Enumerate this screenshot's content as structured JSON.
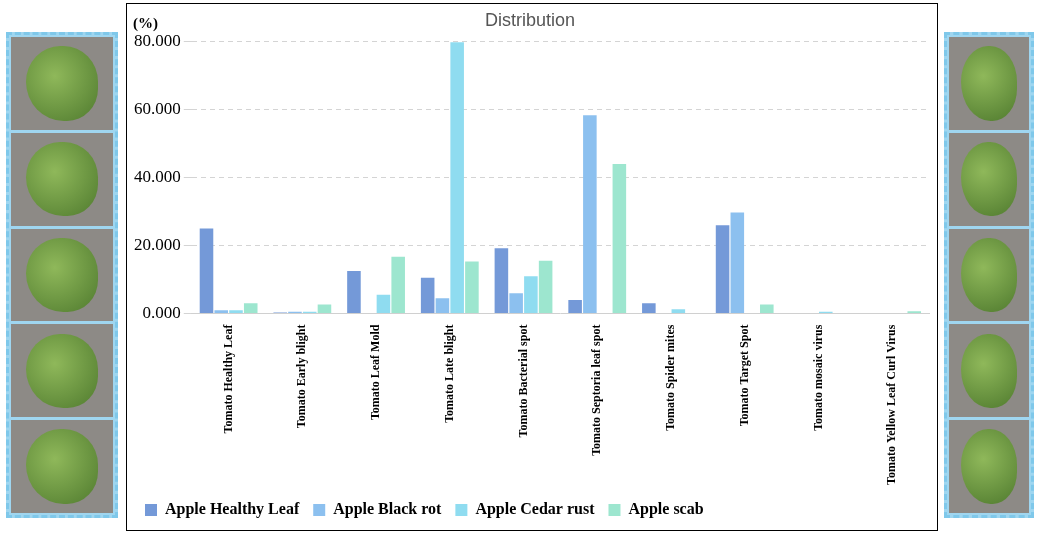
{
  "chart_data": {
    "type": "bar",
    "title": "Distribution",
    "y_label": "(%)",
    "categories": [
      "Tomato Healthy Leaf",
      "Tomato Early blight",
      "Tomato Leaf Mold",
      "Tomato Late blight",
      "Tomato Bacterial spot",
      "Tomato Septoria leaf spot",
      "Tomato Spider mites",
      "Tomato Target Spot",
      "Tomato mosaic virus",
      "Tomato Yellow Leaf Curl Virus"
    ],
    "series": [
      {
        "name": "Apple Healthy Leaf",
        "color": "#7499d8",
        "values": [
          25,
          0.3,
          12.5,
          10.5,
          19.2,
          4,
          3,
          26,
          0,
          0
        ]
      },
      {
        "name": "Apple Black rot",
        "color": "#8cc0ef",
        "values": [
          1,
          0.5,
          0,
          4.5,
          6,
          58.3,
          0,
          29.7,
          0,
          0
        ]
      },
      {
        "name": "Apple Cedar rust",
        "color": "#8fdcf0",
        "values": [
          1,
          0.5,
          5.5,
          79.8,
          11,
          0,
          1.3,
          0,
          0.5,
          0
        ]
      },
      {
        "name": "Apple scab",
        "color": "#9de6cf",
        "values": [
          3,
          2.7,
          16.7,
          15.3,
          15.5,
          44,
          0,
          2.7,
          0,
          0.7
        ]
      }
    ],
    "ylim": [
      0,
      80
    ],
    "yticks": [
      {
        "value": 0,
        "label": "0.000"
      },
      {
        "value": 20,
        "label": "20.000"
      },
      {
        "value": 40,
        "label": "40.000"
      },
      {
        "value": 60,
        "label": "60.000"
      },
      {
        "value": 80,
        "label": "80.000"
      }
    ],
    "grid": true,
    "legend": "bottom"
  }
}
